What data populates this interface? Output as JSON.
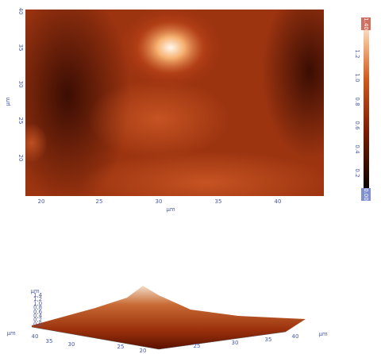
{
  "map": {
    "y_label": "µm",
    "y_ticks": [
      "40",
      "35",
      "30",
      "25",
      "20"
    ],
    "x_label": "µm",
    "x_ticks": [
      "20",
      "25",
      "30",
      "35",
      "40"
    ]
  },
  "colorbar": {
    "top": "1.40",
    "labels": [
      "1.2",
      "1.0",
      "0.8",
      "0.6",
      "0.4",
      "0.2"
    ],
    "bottom": "0.00"
  },
  "surface": {
    "z_label": "µm",
    "z_ticks": [
      "1,4",
      "1,2",
      "1,0",
      "0,8",
      "0,6",
      "0,4",
      "0,2",
      "0,0"
    ],
    "left_ticks": [
      "40",
      "35",
      "30",
      "25",
      "20"
    ],
    "right_ticks": [
      "25",
      "30",
      "35",
      "40"
    ],
    "left_label": "µm",
    "right_label": "µm"
  }
}
